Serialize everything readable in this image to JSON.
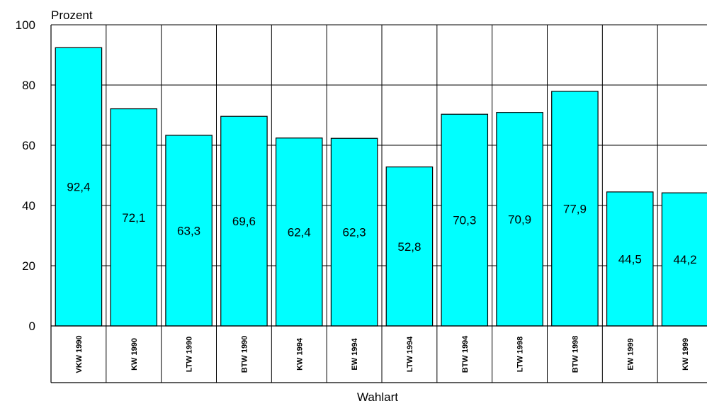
{
  "chart_data": {
    "type": "bar",
    "ylabel": "Prozent",
    "xlabel": "Wahlart",
    "ylim": [
      0,
      100
    ],
    "yticks": [
      0,
      20,
      40,
      60,
      80,
      100
    ],
    "grid": true,
    "categories": [
      "VKW 1990",
      "KW 1990",
      "LTW 1990",
      "BTW 1990",
      "KW 1994",
      "EW 1994",
      "LTW 1994",
      "BTW 1994",
      "LTW 1998",
      "BTW 1998",
      "EW 1999",
      "KW 1999"
    ],
    "values": [
      92.4,
      72.1,
      63.3,
      69.6,
      62.4,
      62.3,
      52.8,
      70.3,
      70.9,
      77.9,
      44.5,
      44.2
    ],
    "value_labels": [
      "92,4",
      "72,1",
      "63,3",
      "69,6",
      "62,4",
      "62,3",
      "52,8",
      "70,3",
      "70,9",
      "77,9",
      "44,5",
      "44,2"
    ],
    "colors": {
      "bar": "#00FFFF",
      "bar_stroke": "#000000",
      "grid": "#000000"
    }
  }
}
